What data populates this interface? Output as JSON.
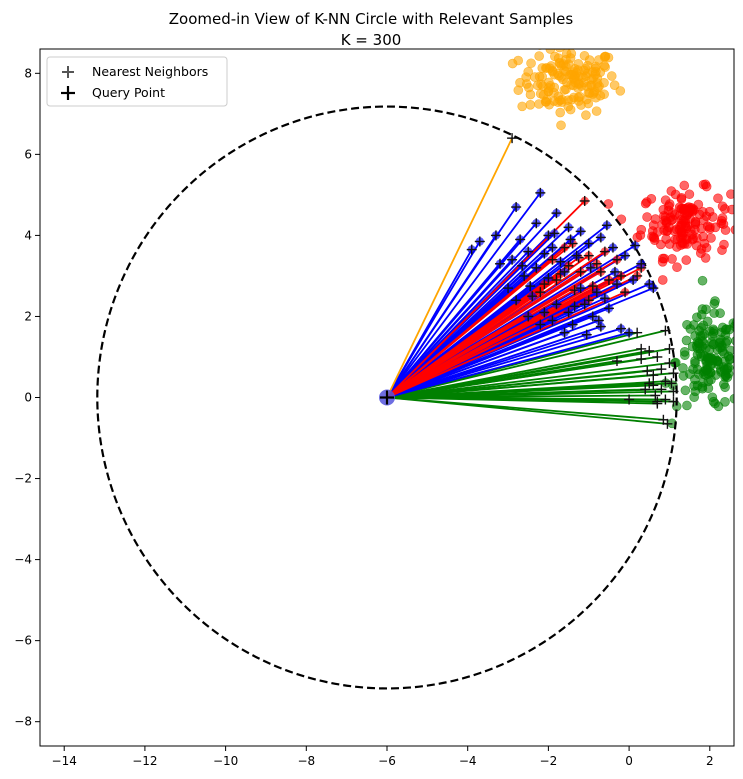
{
  "chart_data": {
    "type": "scatter",
    "title": "Zoomed-in View of K-NN Circle with Relevant Samples",
    "subtitle": "K = 300",
    "xlabel": "",
    "ylabel": "",
    "xlim": [
      -14.6,
      2.6
    ],
    "ylim": [
      -8.6,
      8.6
    ],
    "x_ticks": [
      -14,
      -12,
      -10,
      -8,
      -6,
      -4,
      -2,
      0,
      2
    ],
    "y_ticks": [
      -8,
      -6,
      -4,
      -2,
      0,
      2,
      4,
      6,
      8
    ],
    "grid": false,
    "legend_position": "top-left",
    "legend": [
      {
        "label": "Nearest Neighbors",
        "marker": "+",
        "color": "#555555"
      },
      {
        "label": "Query Point",
        "marker": "+",
        "color": "#000000"
      }
    ],
    "query_point": {
      "x": -6.0,
      "y": 0.0,
      "marker_color": "#5555dd"
    },
    "circle": {
      "center": [
        -6.0,
        0.0
      ],
      "radius": 7.18,
      "style": "dashed",
      "color": "#000000"
    },
    "clusters": [
      {
        "name": "",
        "color": "#ffa500",
        "center": [
          -1.5,
          7.8
        ],
        "spread": [
          1.1,
          0.75
        ],
        "n": 150
      },
      {
        "name": "",
        "color": "#ff0000",
        "center": [
          1.4,
          4.3
        ],
        "spread": [
          1.0,
          0.75
        ],
        "n": 150
      },
      {
        "name": "",
        "color": "#008000",
        "center": [
          2.0,
          0.9
        ],
        "spread": [
          0.75,
          1.1
        ],
        "n": 150
      }
    ],
    "series": [
      {
        "color": "#ffa500",
        "neighbors": [
          [
            -2.9,
            6.4
          ]
        ]
      },
      {
        "color": "#ff0000",
        "neighbors": [
          [
            -1.1,
            4.85
          ],
          [
            -1.4,
            3.8
          ],
          [
            -1.0,
            3.5
          ],
          [
            -1.5,
            3.25
          ],
          [
            -1.2,
            3.1
          ],
          [
            -0.8,
            3.3
          ],
          [
            -0.5,
            2.9
          ],
          [
            -0.2,
            3.0
          ],
          [
            -0.6,
            3.6
          ],
          [
            -1.7,
            3.05
          ],
          [
            -1.9,
            3.4
          ],
          [
            -1.35,
            2.65
          ],
          [
            -0.9,
            2.75
          ],
          [
            -2.1,
            2.8
          ],
          [
            0.2,
            3.0
          ],
          [
            -0.3,
            3.4
          ],
          [
            -1.6,
            3.7
          ],
          [
            -2.2,
            2.6
          ],
          [
            -0.7,
            3.1
          ],
          [
            -1.0,
            2.4
          ],
          [
            0.3,
            3.2
          ],
          [
            -0.1,
            2.6
          ],
          [
            -1.25,
            3.45
          ],
          [
            -1.8,
            2.9
          ]
        ]
      },
      {
        "color": "#0000ff",
        "neighbors": [
          [
            -2.2,
            5.05
          ],
          [
            -2.8,
            4.7
          ],
          [
            -3.7,
            3.85
          ],
          [
            -3.9,
            3.65
          ],
          [
            -2.3,
            4.3
          ],
          [
            -1.8,
            4.55
          ],
          [
            -3.3,
            4.0
          ],
          [
            -2.7,
            3.9
          ],
          [
            -2.5,
            3.6
          ],
          [
            -2.9,
            3.4
          ],
          [
            -3.2,
            3.3
          ],
          [
            -2.0,
            4.0
          ],
          [
            -1.5,
            4.2
          ],
          [
            -1.2,
            4.1
          ],
          [
            -1.9,
            3.7
          ],
          [
            -2.3,
            3.2
          ],
          [
            -2.6,
            3.0
          ],
          [
            -2.0,
            2.95
          ],
          [
            -1.6,
            3.1
          ],
          [
            -1.3,
            3.5
          ],
          [
            -1.0,
            3.8
          ],
          [
            -0.7,
            3.95
          ],
          [
            -0.4,
            3.7
          ],
          [
            -0.1,
            3.5
          ],
          [
            0.3,
            3.3
          ],
          [
            0.5,
            2.8
          ],
          [
            0.6,
            2.7
          ],
          [
            0.1,
            2.9
          ],
          [
            -0.3,
            2.8
          ],
          [
            -0.8,
            2.6
          ],
          [
            -1.1,
            2.3
          ],
          [
            -1.5,
            2.1
          ],
          [
            -1.8,
            2.3
          ],
          [
            -2.1,
            2.1
          ],
          [
            -2.5,
            2.0
          ],
          [
            -2.8,
            2.4
          ],
          [
            -3.0,
            2.7
          ],
          [
            -2.4,
            2.5
          ],
          [
            -1.9,
            1.9
          ],
          [
            -1.4,
            1.8
          ],
          [
            -0.9,
            2.0
          ],
          [
            -0.5,
            2.2
          ],
          [
            -0.2,
            1.7
          ],
          [
            0.0,
            1.6
          ],
          [
            -0.7,
            1.75
          ],
          [
            -1.6,
            1.6
          ],
          [
            -2.2,
            1.8
          ],
          [
            -1.2,
            2.7
          ],
          [
            -0.6,
            2.45
          ],
          [
            -1.7,
            3.35
          ],
          [
            -2.1,
            3.55
          ],
          [
            -0.95,
            3.2
          ],
          [
            -0.35,
            3.1
          ],
          [
            -2.45,
            2.75
          ],
          [
            -1.35,
            2.25
          ],
          [
            -0.75,
            1.9
          ],
          [
            -1.05,
            1.55
          ],
          [
            -2.65,
            3.25
          ],
          [
            -1.45,
            3.9
          ],
          [
            0.15,
            3.75
          ],
          [
            -0.55,
            4.25
          ],
          [
            -1.85,
            4.05
          ]
        ]
      },
      {
        "color": "#008000",
        "neighbors": [
          [
            0.2,
            1.6
          ],
          [
            0.9,
            1.65
          ],
          [
            0.3,
            1.2
          ],
          [
            0.5,
            1.15
          ],
          [
            0.7,
            1.0
          ],
          [
            1.0,
            1.2
          ],
          [
            0.8,
            0.7
          ],
          [
            1.1,
            0.6
          ],
          [
            0.9,
            0.4
          ],
          [
            0.6,
            0.3
          ],
          [
            0.4,
            0.2
          ],
          [
            0.8,
            0.2
          ],
          [
            1.1,
            0.15
          ],
          [
            0.9,
            -0.05
          ],
          [
            0.7,
            -0.1
          ],
          [
            0.5,
            0.35
          ],
          [
            0.0,
            -0.05
          ],
          [
            0.7,
            -0.15
          ],
          [
            1.1,
            -0.1
          ],
          [
            0.85,
            -0.55
          ],
          [
            0.95,
            -0.65
          ],
          [
            1.0,
            0.85
          ],
          [
            0.6,
            0.55
          ],
          [
            0.3,
            0.95
          ],
          [
            -0.3,
            0.9
          ],
          [
            0.45,
            0.65
          ],
          [
            1.05,
            0.35
          ],
          [
            0.65,
            0.05
          ]
        ]
      }
    ]
  }
}
